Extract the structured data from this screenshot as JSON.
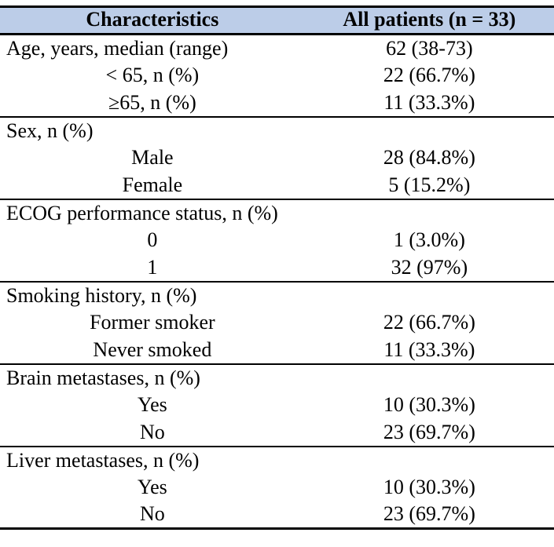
{
  "colors": {
    "header_background": "#bccde8",
    "rule_color": "#000000",
    "text_color": "#000000",
    "page_background": "#ffffff"
  },
  "table": {
    "header": {
      "characteristics": "Characteristics",
      "all_patients": "All patients (n = 33)"
    },
    "rows": [
      {
        "label": "Age, years, median (range)",
        "value": "62 (38-73)"
      },
      {
        "label": "< 65, n (%)",
        "value": "22 (66.7%)"
      },
      {
        "label": "≥65, n (%)",
        "value": "11 (33.3%)"
      },
      {
        "label": "Sex, n (%)",
        "value": ""
      },
      {
        "label": "Male",
        "value": "28 (84.8%)"
      },
      {
        "label": "Female",
        "value": "5 (15.2%)"
      },
      {
        "label": "ECOG performance status, n (%)",
        "value": ""
      },
      {
        "label": "0",
        "value": "1 (3.0%)"
      },
      {
        "label": "1",
        "value": "32 (97%)"
      },
      {
        "label": "Smoking history, n (%)",
        "value": ""
      },
      {
        "label": "Former smoker",
        "value": "22 (66.7%)"
      },
      {
        "label": "Never smoked",
        "value": "11 (33.3%)"
      },
      {
        "label": "Brain metastases, n (%)",
        "value": ""
      },
      {
        "label": "Yes",
        "value": "10 (30.3%)"
      },
      {
        "label": "No",
        "value": "23 (69.7%)"
      },
      {
        "label": "Liver metastases, n (%)",
        "value": ""
      },
      {
        "label": "Yes",
        "value": "10 (30.3%)"
      },
      {
        "label": "No",
        "value": "23 (69.7%)"
      }
    ]
  }
}
